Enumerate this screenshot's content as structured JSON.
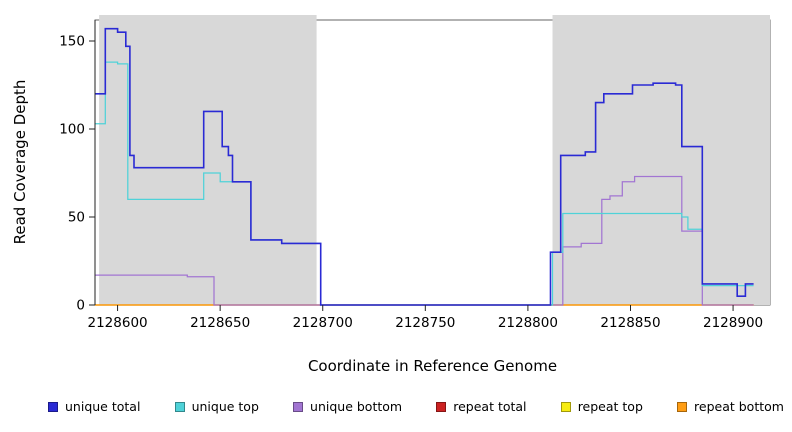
{
  "chart_data": {
    "type": "line",
    "step": "after",
    "title": "",
    "xlabel": "Coordinate in Reference Genome",
    "ylabel": "Read Coverage Depth",
    "xlim": [
      2128589,
      2128918
    ],
    "ylim": [
      0,
      160
    ],
    "xticks": [
      2128600,
      2128650,
      2128700,
      2128750,
      2128800,
      2128850,
      2128900
    ],
    "yticks": [
      0,
      50,
      100,
      150
    ],
    "grid": false,
    "shade_color": "#d8d8d8",
    "shaded_regions": [
      {
        "x0": 2128591,
        "x1": 2128697
      },
      {
        "x0": 2128812,
        "x1": 2128918
      }
    ],
    "series": [
      {
        "name": "repeat total",
        "color": "#cc2222",
        "points": [
          [
            2128589,
            0
          ],
          [
            2128910,
            0
          ]
        ]
      },
      {
        "name": "repeat top",
        "color": "#f7ec13",
        "points": [
          [
            2128589,
            0
          ],
          [
            2128910,
            0
          ]
        ]
      },
      {
        "name": "repeat bottom",
        "color": "#ff9d13",
        "points": [
          [
            2128589,
            0
          ],
          [
            2128910,
            0
          ]
        ]
      },
      {
        "name": "unique bottom",
        "color": "#a275d2",
        "points": [
          [
            2128589,
            17
          ],
          [
            2128632,
            17
          ],
          [
            2128634,
            16
          ],
          [
            2128646,
            16
          ],
          [
            2128647,
            0
          ],
          [
            2128815,
            0
          ],
          [
            2128817,
            33
          ],
          [
            2128826,
            35
          ],
          [
            2128836,
            60
          ],
          [
            2128840,
            62
          ],
          [
            2128846,
            70
          ],
          [
            2128852,
            73
          ],
          [
            2128873,
            73
          ],
          [
            2128875,
            42
          ],
          [
            2128885,
            0
          ],
          [
            2128910,
            0
          ]
        ]
      },
      {
        "name": "unique top",
        "color": "#4fd2d8",
        "points": [
          [
            2128589,
            103
          ],
          [
            2128594,
            138
          ],
          [
            2128600,
            137
          ],
          [
            2128605,
            60
          ],
          [
            2128640,
            60
          ],
          [
            2128642,
            75
          ],
          [
            2128650,
            70
          ],
          [
            2128665,
            37
          ],
          [
            2128680,
            35
          ],
          [
            2128699,
            0
          ],
          [
            2128812,
            30
          ],
          [
            2128817,
            52
          ],
          [
            2128870,
            52
          ],
          [
            2128875,
            50
          ],
          [
            2128878,
            43
          ],
          [
            2128885,
            11
          ],
          [
            2128910,
            11
          ]
        ]
      },
      {
        "name": "unique total",
        "color": "#2a2ad4",
        "points": [
          [
            2128589,
            120
          ],
          [
            2128594,
            157
          ],
          [
            2128600,
            155
          ],
          [
            2128604,
            147
          ],
          [
            2128606,
            85
          ],
          [
            2128608,
            78
          ],
          [
            2128640,
            78
          ],
          [
            2128642,
            110
          ],
          [
            2128651,
            90
          ],
          [
            2128654,
            85
          ],
          [
            2128656,
            70
          ],
          [
            2128665,
            37
          ],
          [
            2128680,
            35
          ],
          [
            2128699,
            0
          ],
          [
            2128811,
            30
          ],
          [
            2128816,
            85
          ],
          [
            2128828,
            87
          ],
          [
            2128833,
            115
          ],
          [
            2128837,
            120
          ],
          [
            2128851,
            125
          ],
          [
            2128861,
            126
          ],
          [
            2128872,
            125
          ],
          [
            2128875,
            90
          ],
          [
            2128885,
            12
          ],
          [
            2128902,
            5
          ],
          [
            2128906,
            12
          ],
          [
            2128910,
            12
          ]
        ]
      }
    ],
    "legend": [
      {
        "label": "unique total",
        "color": "#2a2ad4"
      },
      {
        "label": "unique top",
        "color": "#4fd2d8"
      },
      {
        "label": "unique bottom",
        "color": "#a275d2"
      },
      {
        "label": "repeat total",
        "color": "#cc2222"
      },
      {
        "label": "repeat top",
        "color": "#f7ec13"
      },
      {
        "label": "repeat bottom",
        "color": "#ff9d13"
      }
    ]
  }
}
